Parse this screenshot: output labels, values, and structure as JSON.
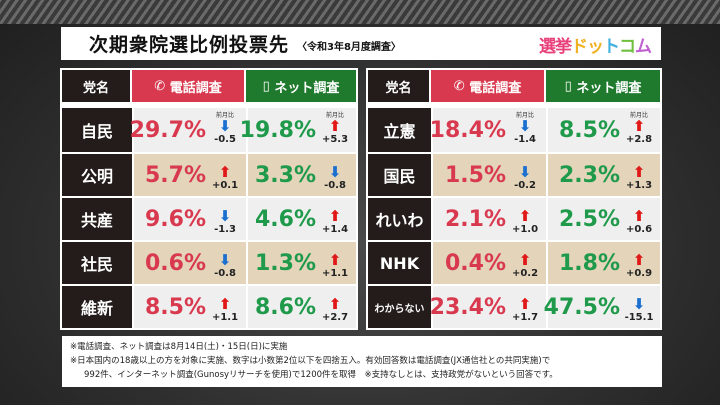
{
  "title": "次期衆院選比例投票先",
  "subtitle": "〈令和3年8月度調査〉",
  "logo": "選挙ドットコム",
  "header": {
    "party": "党名",
    "phone": "電話調査",
    "net": "ネット調査",
    "prev_label": "前月比"
  },
  "left": [
    {
      "party": "自民",
      "tel": "29.7%",
      "tel_chg": "-0.5",
      "tel_dir": "down",
      "net": "19.8%",
      "net_chg": "+5.3",
      "net_dir": "up"
    },
    {
      "party": "公明",
      "tel": "5.7%",
      "tel_chg": "+0.1",
      "tel_dir": "up",
      "net": "3.3%",
      "net_chg": "-0.8",
      "net_dir": "down"
    },
    {
      "party": "共産",
      "tel": "9.6%",
      "tel_chg": "-1.3",
      "tel_dir": "down",
      "net": "4.6%",
      "net_chg": "+1.4",
      "net_dir": "up"
    },
    {
      "party": "社民",
      "tel": "0.6%",
      "tel_chg": "-0.8",
      "tel_dir": "down",
      "net": "1.3%",
      "net_chg": "+1.1",
      "net_dir": "up"
    },
    {
      "party": "維新",
      "tel": "8.5%",
      "tel_chg": "+1.1",
      "tel_dir": "up",
      "net": "8.6%",
      "net_chg": "+2.7",
      "net_dir": "up"
    }
  ],
  "right": [
    {
      "party": "立憲",
      "tel": "18.4%",
      "tel_chg": "-1.4",
      "tel_dir": "down",
      "net": "8.5%",
      "net_chg": "+2.8",
      "net_dir": "up"
    },
    {
      "party": "国民",
      "tel": "1.5%",
      "tel_chg": "-0.2",
      "tel_dir": "down",
      "net": "2.3%",
      "net_chg": "+1.3",
      "net_dir": "up"
    },
    {
      "party": "れいわ",
      "tel": "2.1%",
      "tel_chg": "+1.0",
      "tel_dir": "up",
      "net": "2.5%",
      "net_chg": "+0.6",
      "net_dir": "up"
    },
    {
      "party": "NHK",
      "tel": "0.4%",
      "tel_chg": "+0.2",
      "tel_dir": "up",
      "net": "1.8%",
      "net_chg": "+0.9",
      "net_dir": "up"
    },
    {
      "party": "わからない",
      "tel": "23.4%",
      "tel_chg": "+1.7",
      "tel_dir": "up",
      "net": "47.5%",
      "net_chg": "-15.1",
      "net_dir": "down"
    }
  ],
  "notes": [
    "※電話調査、ネット調査は8月14日(土)・15日(日)に実施",
    "※日本国内の18歳以上の方を対象に実施、数字は小数第2位以下を四捨五入。有効回答数は電話調査(JX通信社との共同実施)で",
    "992件、インターネット調査(Gunosyリサーチを使用)で1200件を取得　※支持なしとは、支持政党がないという回答です。"
  ]
}
